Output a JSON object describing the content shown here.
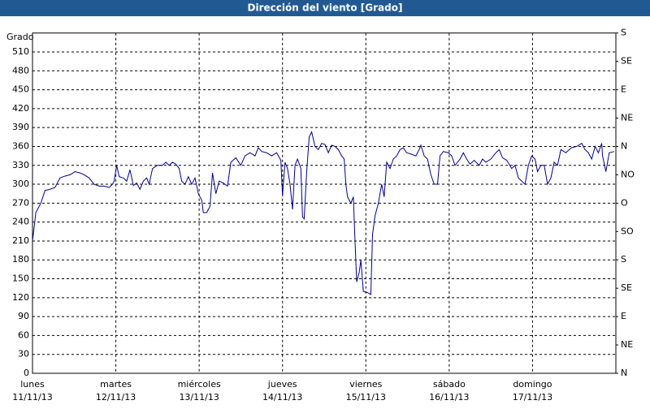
{
  "chart_data": {
    "type": "line",
    "title": "Dirección del viento [Grado]",
    "y_label": "Grado",
    "xlim": [
      0,
      7
    ],
    "xticks": [
      {
        "value": 0,
        "label": "lunes"
      },
      {
        "value": 1,
        "label": "martes"
      },
      {
        "value": 2,
        "label": "miércoles"
      },
      {
        "value": 3,
        "label": "jueves"
      },
      {
        "value": 4,
        "label": "viernes"
      },
      {
        "value": 5,
        "label": "sábado"
      },
      {
        "value": 6,
        "label": "domingo"
      }
    ],
    "xtick_dates": [
      "11/11/13",
      "12/11/13",
      "13/11/13",
      "14/11/13",
      "15/11/13",
      "16/11/13",
      "17/11/13"
    ],
    "ylim": [
      0,
      540
    ],
    "yticks": [
      0,
      30,
      60,
      90,
      120,
      150,
      180,
      210,
      240,
      270,
      300,
      330,
      360,
      390,
      420,
      450,
      480,
      510
    ],
    "y2lim": [
      0,
      540
    ],
    "y2ticks": [
      {
        "value": 0,
        "label": "N"
      },
      {
        "value": 45,
        "label": "NE"
      },
      {
        "value": 90,
        "label": "E"
      },
      {
        "value": 135,
        "label": "SE"
      },
      {
        "value": 180,
        "label": "S"
      },
      {
        "value": 225,
        "label": "SO"
      },
      {
        "value": 270,
        "label": "O"
      },
      {
        "value": 315,
        "label": "NO"
      },
      {
        "value": 360,
        "label": "N"
      },
      {
        "value": 405,
        "label": "NE"
      },
      {
        "value": 450,
        "label": "E"
      },
      {
        "value": 495,
        "label": "SE"
      },
      {
        "value": 540,
        "label": "S"
      }
    ],
    "grid": true,
    "series": [
      {
        "color": "#00008b",
        "x": [
          0,
          0.04,
          0.1,
          0.15,
          0.21,
          0.27,
          0.33,
          0.39,
          0.45,
          0.51,
          0.57,
          0.62,
          0.68,
          0.74,
          0.8,
          0.86,
          0.92,
          0.96,
          0.98,
          1.01,
          1.04,
          1.09,
          1.13,
          1.17,
          1.21,
          1.25,
          1.29,
          1.33,
          1.37,
          1.4,
          1.44,
          1.5,
          1.56,
          1.6,
          1.64,
          1.68,
          1.72,
          1.76,
          1.79,
          1.83,
          1.87,
          1.91,
          1.95,
          1.99,
          2.03,
          2.05,
          2.09,
          2.13,
          2.16,
          2.2,
          2.24,
          2.29,
          2.34,
          2.38,
          2.44,
          2.5,
          2.55,
          2.61,
          2.67,
          2.71,
          2.75,
          2.81,
          2.87,
          2.93,
          2.98,
          3.0,
          3.03,
          3.06,
          3.09,
          3.12,
          3.15,
          3.18,
          3.22,
          3.24,
          3.26,
          3.29,
          3.32,
          3.35,
          3.39,
          3.43,
          3.47,
          3.51,
          3.55,
          3.59,
          3.63,
          3.67,
          3.71,
          3.74,
          3.76,
          3.78,
          3.82,
          3.85,
          3.87,
          3.89,
          3.92,
          3.94,
          3.97,
          4.02,
          4.06,
          4.08,
          4.11,
          4.15,
          4.19,
          4.22,
          4.25,
          4.29,
          4.33,
          4.37,
          4.41,
          4.45,
          4.49,
          4.54,
          4.6,
          4.64,
          4.66,
          4.7,
          4.74,
          4.78,
          4.82,
          4.86,
          4.89,
          4.93,
          4.99,
          5.03,
          5.07,
          5.13,
          5.17,
          5.21,
          5.25,
          5.3,
          5.36,
          5.4,
          5.44,
          5.5,
          5.56,
          5.6,
          5.64,
          5.69,
          5.75,
          5.79,
          5.83,
          5.87,
          5.91,
          5.95,
          5.99,
          6.03,
          6.06,
          6.1,
          6.14,
          6.18,
          6.22,
          6.26,
          6.3,
          6.34,
          6.4,
          6.44,
          6.47,
          6.53,
          6.59,
          6.63,
          6.67,
          6.71,
          6.75,
          6.79,
          6.83,
          6.84,
          6.88,
          6.92,
          6.98
        ],
        "values": [
          210,
          255,
          270,
          290,
          292,
          295,
          310,
          313,
          315,
          320,
          318,
          315,
          310,
          300,
          297,
          297,
          295,
          300,
          305,
          330,
          312,
          310,
          305,
          323,
          298,
          302,
          292,
          305,
          310,
          300,
          325,
          330,
          330,
          335,
          330,
          335,
          332,
          325,
          305,
          300,
          312,
          300,
          310,
          285,
          275,
          255,
          255,
          265,
          318,
          285,
          305,
          302,
          297,
          335,
          342,
          330,
          345,
          350,
          345,
          358,
          352,
          350,
          345,
          350,
          338,
          282,
          335,
          325,
          300,
          260,
          330,
          340,
          325,
          248,
          245,
          320,
          375,
          383,
          360,
          355,
          365,
          363,
          350,
          362,
          360,
          355,
          345,
          340,
          300,
          280,
          270,
          280,
          210,
          145,
          160,
          180,
          130,
          128,
          125,
          220,
          250,
          270,
          300,
          280,
          335,
          325,
          340,
          345,
          355,
          358,
          350,
          348,
          345,
          355,
          362,
          345,
          340,
          315,
          300,
          300,
          345,
          352,
          350,
          345,
          330,
          340,
          350,
          340,
          332,
          338,
          330,
          340,
          335,
          340,
          350,
          355,
          342,
          338,
          325,
          330,
          310,
          305,
          300,
          330,
          345,
          340,
          320,
          330,
          330,
          300,
          310,
          335,
          330,
          355,
          350,
          355,
          358,
          360,
          365,
          355,
          350,
          340,
          360,
          350,
          365,
          345,
          320,
          350,
          352
        ]
      }
    ]
  }
}
